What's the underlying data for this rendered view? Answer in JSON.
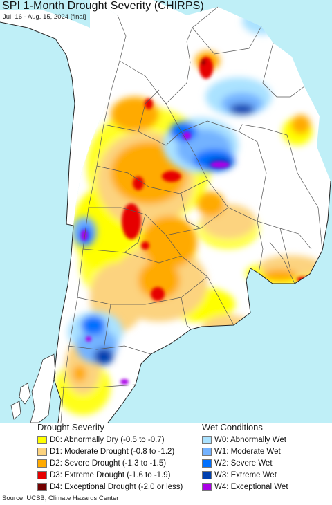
{
  "map": {
    "title": "SPI 1-Month Drought Severity (CHIRPS)",
    "subtitle": "Jul. 16 - Aug. 15, 2024 [final]"
  },
  "colors": {
    "ocean": "#bfeff7",
    "land": "#ffffff",
    "border": "#555555",
    "coast": "#222222"
  },
  "legend": {
    "drought_heading": "Drought Severity",
    "wet_heading": "Wet Conditions",
    "drought_items": [
      {
        "code": "D0",
        "label": "D0: Abnormally Dry (-0.5 to -0.7)",
        "color": "#ffff00"
      },
      {
        "code": "D1",
        "label": "D1: Moderate Drought (-0.8 to -1.2)",
        "color": "#fcd37f"
      },
      {
        "code": "D2",
        "label": "D2: Severe Drought (-1.3 to -1.5)",
        "color": "#ffaa00"
      },
      {
        "code": "D3",
        "label": "D3: Extreme Drought (-1.6 to -1.9)",
        "color": "#e60000"
      },
      {
        "code": "D4",
        "label": "D4: Exceptional Drought (-2.0 or less)",
        "color": "#730000"
      }
    ],
    "wet_items": [
      {
        "code": "W0",
        "label": "W0: Abnormally Wet",
        "color": "#aae2ff"
      },
      {
        "code": "W1",
        "label": "W1: Moderate Wet",
        "color": "#73b2ff"
      },
      {
        "code": "W2",
        "label": "W2: Severe Wet",
        "color": "#0070ff"
      },
      {
        "code": "W3",
        "label": "W3: Extreme Wet",
        "color": "#0040b0"
      },
      {
        "code": "W4",
        "label": "W4: Exceptional Wet",
        "color": "#a900e6"
      }
    ]
  },
  "source": "Source: UCSB, Climate Hazards Center"
}
